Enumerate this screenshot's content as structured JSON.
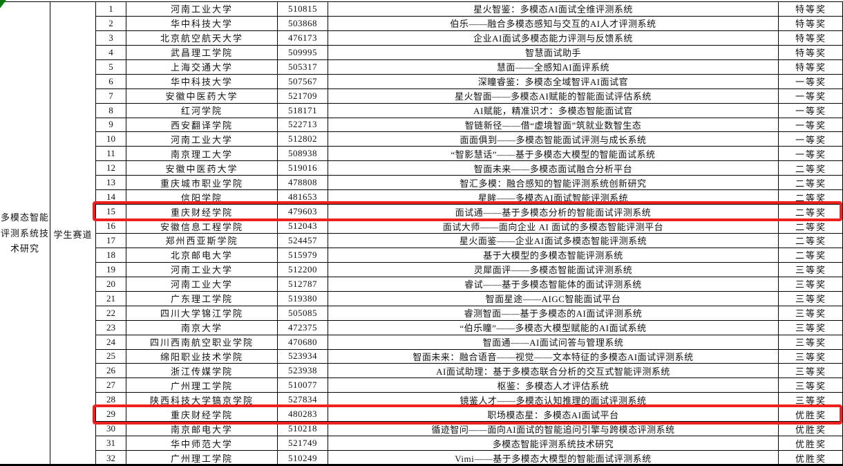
{
  "table": {
    "direction_label": "多模态智能评测系统技术研究",
    "track_label": "学生赛道",
    "highlight_color": "#ee2020",
    "highlighted_rows": [
      15,
      29
    ],
    "corner_mark_color": "#067a06",
    "rows": [
      {
        "no": "1",
        "school": "河南工业大学",
        "code": "510815",
        "title": "星火智鉴：多模态AI面试全维评测系统",
        "award": "特等奖"
      },
      {
        "no": "2",
        "school": "华中科技大学",
        "code": "503868",
        "title": "伯乐——融合多模态感知与交互的AI人才评测系统",
        "award": "特等奖"
      },
      {
        "no": "3",
        "school": "北京航空航天大学",
        "code": "476173",
        "title": "企业AI面试多模态能力评测与反馈系统",
        "award": "特等奖"
      },
      {
        "no": "4",
        "school": "武昌理工学院",
        "code": "509995",
        "title": "智慧面试助手",
        "award": "特等奖"
      },
      {
        "no": "5",
        "school": "上海交通大学",
        "code": "505317",
        "title": "慧面——全感知AI面评系统",
        "award": "特等奖"
      },
      {
        "no": "6",
        "school": "华中科技大学",
        "code": "507567",
        "title": "深瞳睿鉴：多模态全域智评AI面试官",
        "award": "一等奖"
      },
      {
        "no": "7",
        "school": "安徽中医药大学",
        "code": "521709",
        "title": "星火智面——多模态AI赋能的智能面试评估系统",
        "award": "一等奖"
      },
      {
        "no": "8",
        "school": "红河学院",
        "code": "518171",
        "title": "AI赋能，精准识才：多模态智能面试官",
        "award": "一等奖"
      },
      {
        "no": "9",
        "school": "西安翻译学院",
        "code": "522713",
        "title": "智链新径——借“虚境智面”筑就业数智生态",
        "award": "一等奖"
      },
      {
        "no": "10",
        "school": "河南工业大学",
        "code": "512802",
        "title": "面面俱到——多模态智能面试评测与成长系统",
        "award": "一等奖"
      },
      {
        "no": "11",
        "school": "南京理工大学",
        "code": "508938",
        "title": "“智影慧话”——基于多模态大模型的智能面试系统",
        "award": "一等奖"
      },
      {
        "no": "12",
        "school": "安徽中医药大学",
        "code": "519016",
        "title": "智面未来——多模态面试融合分析平台",
        "award": "二等奖"
      },
      {
        "no": "13",
        "school": "重庆城市职业学院",
        "code": "478808",
        "title": "智汇多模：融合感知的智能评测系统创新研究",
        "award": "二等奖"
      },
      {
        "no": "14",
        "school": "信阳学院",
        "code": "481653",
        "title": "星眸——多模态AI面试智能评测系统",
        "award": "二等奖"
      },
      {
        "no": "15",
        "school": "重庆财经学院",
        "code": "479603",
        "title": "面试通——基于多模态分析的智能面试评测系统",
        "award": "二等奖"
      },
      {
        "no": "16",
        "school": "安徽信息工程学院",
        "code": "512043",
        "title": "面试大师——面向企业 AI 面试的多模态智能评测平台",
        "award": "二等奖"
      },
      {
        "no": "17",
        "school": "郑州西亚斯学院",
        "code": "524457",
        "title": "星火面鉴——企业AI面试多模态智能评测系统",
        "award": "二等奖"
      },
      {
        "no": "18",
        "school": "北京邮电大学",
        "code": "515979",
        "title": "基于大模型的多模态智能评测系统",
        "award": "二等奖"
      },
      {
        "no": "19",
        "school": "河南工业大学",
        "code": "512200",
        "title": "灵犀面评——多模态智能面试评测系统",
        "award": "三等奖"
      },
      {
        "no": "20",
        "school": "河南工业大学",
        "code": "512787",
        "title": "睿试——基于多模态智能体的面试评测系统",
        "award": "三等奖"
      },
      {
        "no": "21",
        "school": "广东理工学院",
        "code": "519380",
        "title": "智面星途——AIGC智能面试平台",
        "award": "三等奖"
      },
      {
        "no": "22",
        "school": "四川大学锦江学院",
        "code": "505085",
        "title": "睿测智面——基于多模态的AI面试评测系统",
        "award": "三等奖"
      },
      {
        "no": "23",
        "school": "南京大学",
        "code": "472375",
        "title": "“伯乐瞳”——多模态大模型赋能的AI面试系统",
        "award": "三等奖"
      },
      {
        "no": "24",
        "school": "四川西南航空职业学院",
        "code": "470680",
        "title": "智面通——AI面试问答与管理系统",
        "award": "三等奖"
      },
      {
        "no": "25",
        "school": "绵阳职业技术学院",
        "code": "523934",
        "title": "智面未来：融合语音——视觉——文本特征的多模态AI面试评测系统",
        "award": "三等奖"
      },
      {
        "no": "26",
        "school": "浙江传媒学院",
        "code": "523938",
        "title": "AI面试助理：基于多模态联合分析的交互式智能评测系统",
        "award": "三等奖"
      },
      {
        "no": "27",
        "school": "广州理工学院",
        "code": "510077",
        "title": "枢鉴：多模态人才评估系统",
        "award": "三等奖"
      },
      {
        "no": "28",
        "school": "陕西科技大学镐京学院",
        "code": "527834",
        "title": "镜鉴人才——多模态认知推理的面试评测系统",
        "award": "三等奖"
      },
      {
        "no": "29",
        "school": "重庆财经学院",
        "code": "480283",
        "title": "职场模态星：多模态AI面试平台",
        "award": "优胜奖"
      },
      {
        "no": "30",
        "school": "南京邮电大学",
        "code": "510218",
        "title": "循迹智问——面向AI面试的智能追问引擎与跨模态评测系统",
        "award": "优胜奖"
      },
      {
        "no": "31",
        "school": "华中师范大学",
        "code": "521749",
        "title": "多模态智能评测系统技术研究",
        "award": "优胜奖"
      },
      {
        "no": "32",
        "school": "广州理工学院",
        "code": "510249",
        "title": "Vimi——基于多模态大模型的智能面试评测系统",
        "award": "优胜奖"
      }
    ]
  }
}
